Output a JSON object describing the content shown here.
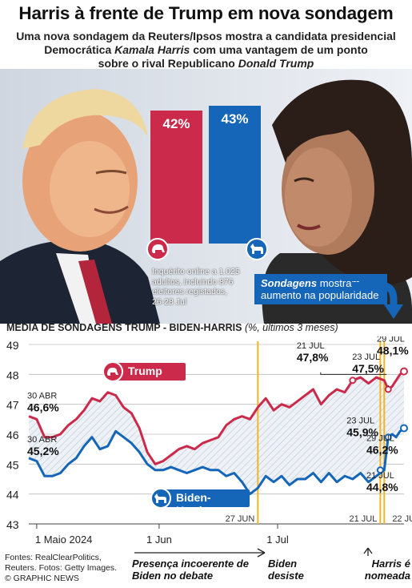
{
  "header": {
    "title": "Harris à frente de Trump em nova sondagem",
    "subtitle_line1": "Uma nova sondagem da Reuters/Ipsos mostra a candidata presidencial",
    "subtitle_line2a": "Democrática ",
    "subtitle_line2b": "Kamala Harris",
    "subtitle_line2c": " com uma vantagem de um ponto",
    "subtitle_line3a": "sobre o rival Republicano ",
    "subtitle_line3b": "Donald Trump"
  },
  "poll": {
    "trump_pct": "42%",
    "harris_pct": "43%",
    "trump_value": 42,
    "harris_value": 43,
    "trump_color": "#cc2a4a",
    "harris_color": "#1565b8",
    "note": "Inquérito online a 1.025 adultos, incluindo 876 eleitores registados, 26-28 Jul"
  },
  "callout": {
    "bold": "Sondagens",
    "rest": "mostram aumento na popularidade"
  },
  "chart_heading": {
    "main": "MÉDIA DE SONDAGENS TRUMP - BIDEN-HARRIS",
    "unit": "(%, últimos 3 meses)"
  },
  "chart_data": {
    "type": "line",
    "title": "MÉDIA DE SONDAGENS TRUMP - BIDEN-HARRIS (%, últimos 3 meses)",
    "ylim": [
      43,
      49
    ],
    "yticks": [
      "43",
      "44",
      "45",
      "46",
      "47",
      "48",
      "49"
    ],
    "x_ticks": [
      "1 Maio 2024",
      "1 Jun",
      "1 Jul"
    ],
    "x_tick_days": [
      2,
      33,
      63
    ],
    "grid": true,
    "series": [
      {
        "name": "Trump",
        "color": "#cc2a4a",
        "x": [
          0,
          2,
          4,
          6,
          8,
          10,
          12,
          14,
          16,
          18,
          20,
          22,
          24,
          26,
          28,
          30,
          32,
          34,
          36,
          38,
          40,
          42,
          44,
          46,
          48,
          50,
          52,
          54,
          56,
          58,
          60,
          62,
          64,
          66,
          68,
          70,
          72,
          74,
          76,
          78,
          80,
          82,
          84,
          86,
          88,
          90,
          91,
          92,
          93,
          94,
          95
        ],
        "y": [
          46.6,
          46.5,
          45.9,
          45.9,
          46.0,
          46.3,
          46.5,
          46.8,
          47.2,
          47.1,
          47.4,
          47.3,
          46.9,
          46.7,
          46.2,
          45.4,
          45.0,
          45.1,
          45.3,
          45.5,
          45.6,
          45.5,
          45.7,
          45.8,
          45.9,
          46.3,
          46.5,
          46.6,
          46.5,
          46.9,
          47.2,
          46.8,
          47.0,
          46.9,
          47.1,
          47.3,
          47.5,
          47.0,
          47.3,
          47.5,
          47.4,
          47.8,
          47.9,
          47.7,
          47.9,
          47.8,
          47.5,
          47.6,
          47.8,
          48.0,
          48.1
        ]
      },
      {
        "name": "Biden-Harris",
        "color": "#1565b8",
        "x": [
          0,
          2,
          4,
          6,
          8,
          10,
          12,
          14,
          16,
          18,
          20,
          22,
          24,
          26,
          28,
          30,
          32,
          34,
          36,
          38,
          40,
          42,
          44,
          46,
          48,
          50,
          52,
          54,
          56,
          58,
          60,
          62,
          64,
          66,
          68,
          70,
          72,
          74,
          76,
          78,
          80,
          82,
          84,
          86,
          88,
          90,
          91,
          92,
          93,
          94,
          95
        ],
        "y": [
          45.2,
          45.1,
          44.6,
          44.6,
          44.7,
          45.0,
          45.2,
          45.6,
          45.9,
          45.5,
          45.6,
          46.1,
          45.9,
          45.7,
          45.4,
          45.0,
          44.8,
          44.8,
          44.9,
          44.8,
          44.7,
          44.8,
          44.9,
          44.8,
          44.8,
          44.6,
          44.7,
          44.4,
          44.0,
          44.2,
          44.6,
          44.4,
          44.6,
          44.3,
          44.5,
          44.5,
          44.7,
          44.4,
          44.7,
          44.4,
          44.6,
          44.5,
          44.7,
          44.4,
          44.6,
          44.8,
          45.9,
          46.0,
          45.9,
          46.1,
          46.2
        ]
      }
    ],
    "annotations": [
      {
        "label": "30 ABR",
        "value": "46,6%",
        "x": 0,
        "y": 46.6,
        "series": "Trump"
      },
      {
        "label": "30 ABR",
        "value": "45,2%",
        "x": 0,
        "y": 45.2,
        "series": "Biden-Harris"
      },
      {
        "label": "21 JUL",
        "value": "47,8%",
        "x": 82,
        "y": 47.8,
        "series": "Trump"
      },
      {
        "label": "23 JUL",
        "value": "47,5%",
        "x": 91,
        "y": 47.5,
        "series": "Trump"
      },
      {
        "label": "29 JUL",
        "value": "48,1%",
        "x": 95,
        "y": 48.1,
        "series": "Trump"
      },
      {
        "label": "23 JUL",
        "value": "45,9%",
        "x": 91,
        "y": 45.9,
        "series": "Biden-Harris"
      },
      {
        "label": "29 JUL",
        "value": "46,2%",
        "x": 95,
        "y": 46.2,
        "series": "Biden-Harris"
      },
      {
        "label": "21 JUL",
        "value": "44,8%",
        "x": 89,
        "y": 44.8,
        "series": "Biden-Harris"
      }
    ],
    "event_lines": [
      {
        "label": "27 JUN",
        "x": 58
      },
      {
        "label": "21 JUL",
        "x": 89
      },
      {
        "label": "22 JUL",
        "x": 90
      }
    ]
  },
  "events": {
    "debate": "Presença incoerente de Biden no debate",
    "withdraws": "Biden desiste",
    "nominated": "Harris é nomeada"
  },
  "legend": {
    "trump": "Trump",
    "biden": "Biden-Harris"
  },
  "footer": "Fontes: RealClearPolitics, Reuters. Fotos: Getty Images. © GRAPHIC NEWS",
  "watermark": "GRAPHIC NEWS"
}
